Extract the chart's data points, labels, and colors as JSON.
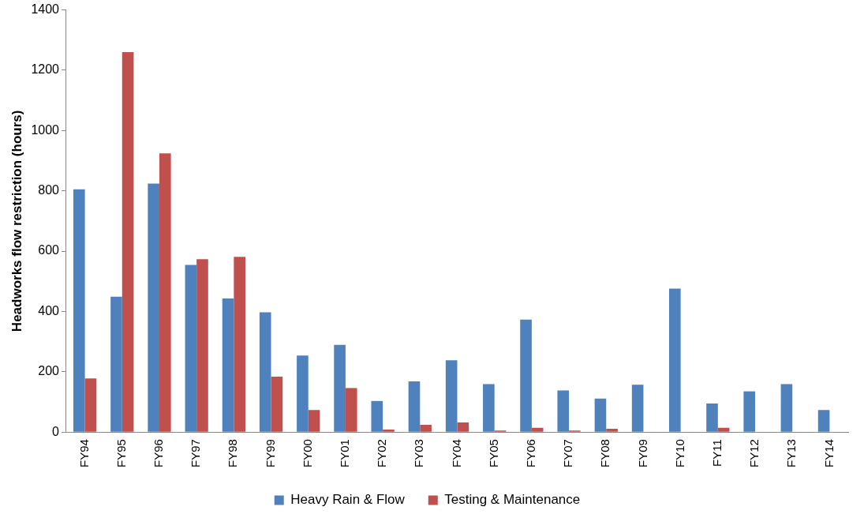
{
  "chart_data": {
    "type": "bar",
    "ylabel": "Headworks flow restriction (hours)",
    "categories": [
      "FY94",
      "FY95",
      "FY96",
      "FY97",
      "FY98",
      "FY99",
      "FY00",
      "FY01",
      "FY02",
      "FY03",
      "FY04",
      "FY05",
      "FY06",
      "FY07",
      "FY08",
      "FY09",
      "FY10",
      "FY11",
      "FY12",
      "FY13",
      "FY14"
    ],
    "series": [
      {
        "name": "Heavy Rain & Flow",
        "color": "#4f81bd",
        "values": [
          805,
          449,
          824,
          554,
          443,
          397,
          254,
          289,
          103,
          168,
          238,
          159,
          373,
          138,
          111,
          157,
          476,
          95,
          135,
          159,
          73
        ]
      },
      {
        "name": "Testing & Maintenance",
        "color": "#c0504d",
        "values": [
          178,
          1260,
          924,
          573,
          581,
          184,
          73,
          146,
          8,
          24,
          32,
          5,
          14,
          5,
          11,
          0,
          0,
          14,
          0,
          0,
          0
        ]
      }
    ],
    "ylim": [
      0,
      1400
    ],
    "yticks": [
      0,
      200,
      400,
      600,
      800,
      1000,
      1200,
      1400
    ],
    "grid": false,
    "legend": "bottom"
  }
}
